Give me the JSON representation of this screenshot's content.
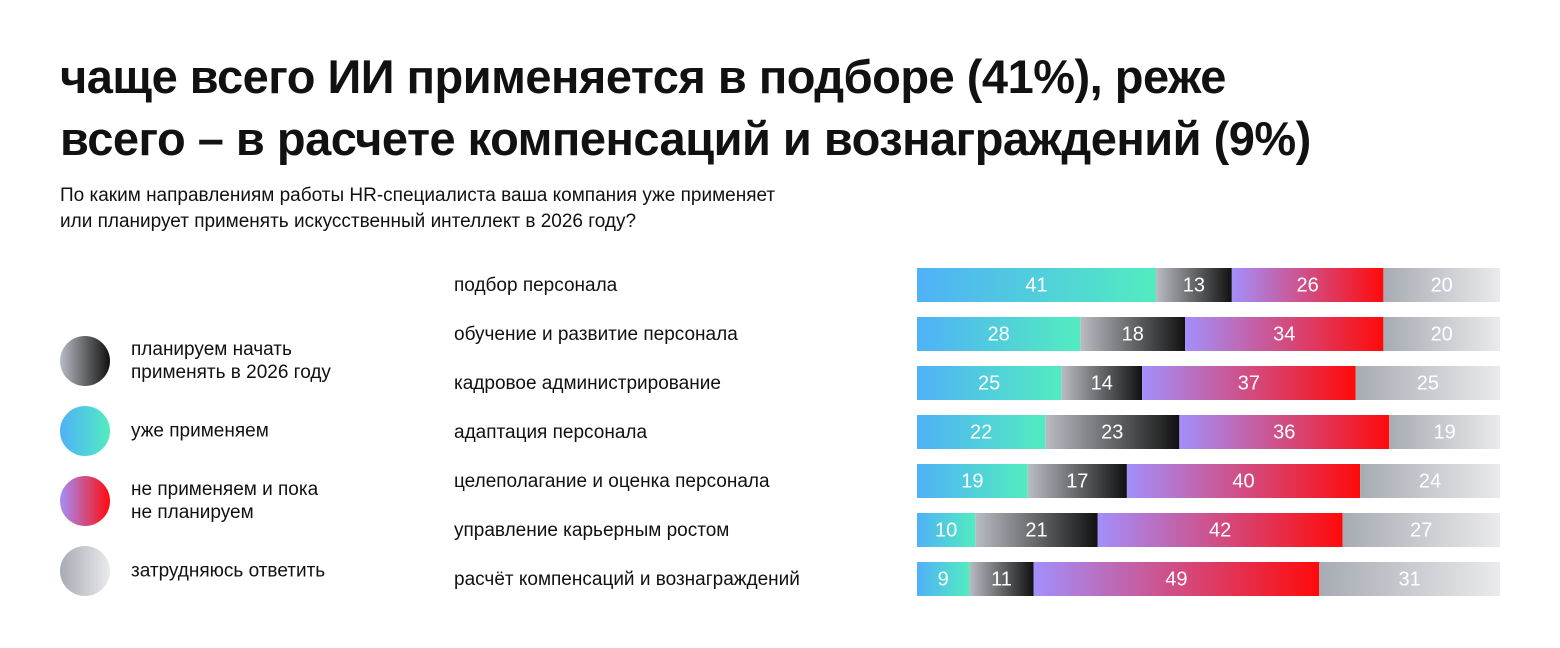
{
  "chart_data": {
    "type": "stacked-bar-horizontal",
    "title": "чаще всего ИИ применяется в подборе (41%), реже\nвсего – в расчете компенсаций и вознаграждений (9%)",
    "subtitle": "По каким направлениям работы HR-специалиста ваша компания уже применяет\nили планирует применять искусственный интеллект в 2026 году?",
    "categories": [
      "подбор персонала",
      "обучение и развитие персонала",
      "кадровое администрирование",
      "адаптация персонала",
      "целеполагание и оценка персонала",
      "управление карьерным ростом",
      "расчёт компенсаций и вознаграждений"
    ],
    "series": [
      {
        "name": "планируем начать\nприменять в 2026 году",
        "color": [
          "#b9bcc3",
          "#111111"
        ],
        "values": [
          13,
          18,
          14,
          23,
          17,
          21,
          11
        ]
      },
      {
        "name": "уже применяем",
        "color": [
          "#4fb1f7",
          "#52ecc0"
        ],
        "values": [
          41,
          28,
          25,
          22,
          19,
          10,
          9
        ]
      },
      {
        "name": "не применяем и пока\nне планируем",
        "color": [
          "#a38ffb",
          "#ff0a0a"
        ],
        "values": [
          26,
          34,
          37,
          36,
          40,
          42,
          49
        ]
      },
      {
        "name": "затрудняюсь ответить",
        "color": [
          "#a7abb3",
          "#eaeaec"
        ],
        "values": [
          20,
          20,
          25,
          19,
          24,
          27,
          31
        ]
      }
    ]
  }
}
